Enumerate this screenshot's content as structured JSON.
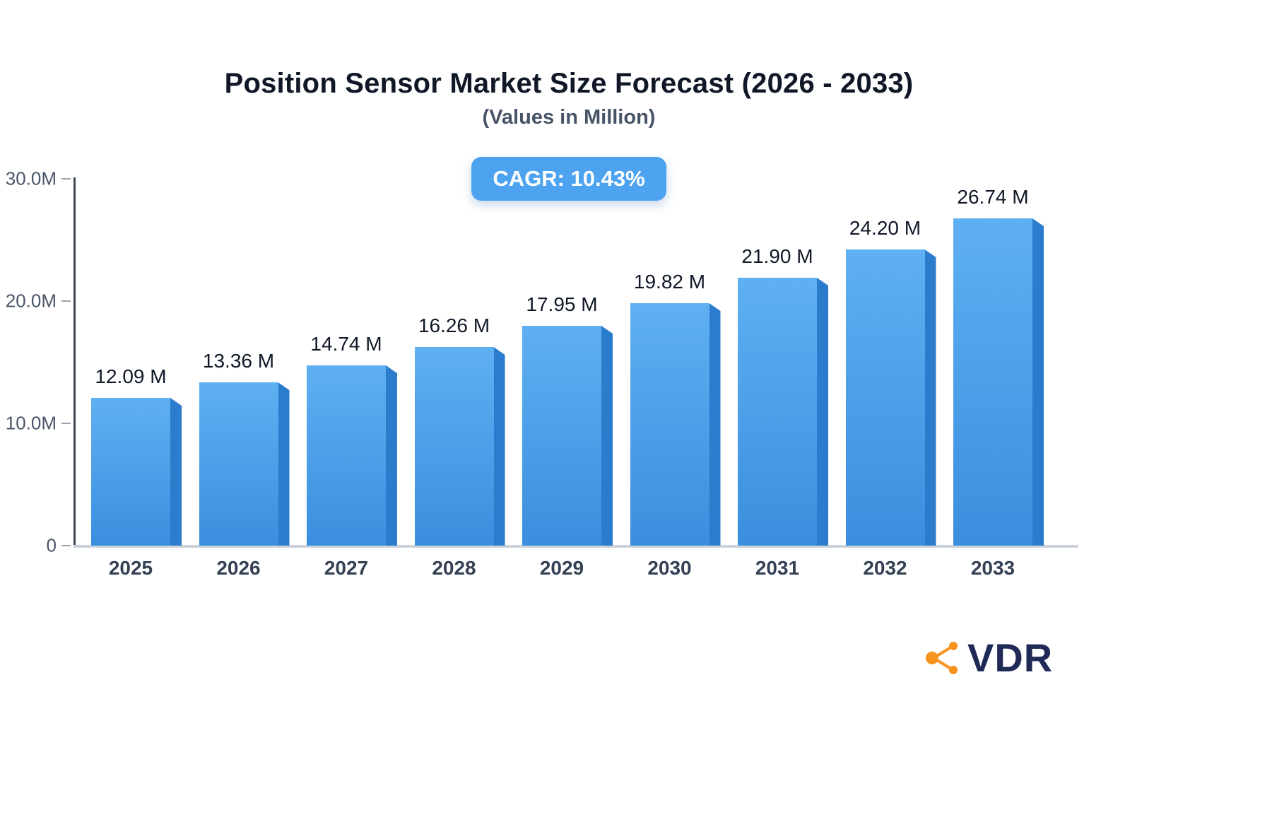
{
  "title": "Position Sensor Market Size Forecast (2026 - 2033)",
  "subtitle": "(Values in Million)",
  "cagr_badge": "CAGR: 10.43%",
  "logo_text": "VDR",
  "chart_data": {
    "type": "bar",
    "title": "Position Sensor Market Size Forecast (2026 - 2033)",
    "subtitle": "(Values in Million)",
    "annotation": "CAGR: 10.43%",
    "categories": [
      "2025",
      "2026",
      "2027",
      "2028",
      "2029",
      "2030",
      "2031",
      "2032",
      "2033"
    ],
    "values": [
      12.09,
      13.36,
      14.74,
      16.26,
      17.95,
      19.82,
      21.9,
      24.2,
      26.74
    ],
    "value_labels": [
      "12.09 M",
      "13.36 M",
      "14.74 M",
      "16.26 M",
      "17.95 M",
      "19.82 M",
      "21.90 M",
      "24.20 M",
      "26.74 M"
    ],
    "xlabel": "",
    "ylabel": "",
    "ylim": [
      0,
      30
    ],
    "yticks": [
      {
        "value": 30,
        "label": "30.0M"
      },
      {
        "value": 20,
        "label": "20.0M"
      },
      {
        "value": 10,
        "label": "10.0M"
      },
      {
        "value": 0,
        "label": "0"
      }
    ],
    "grid": false,
    "legend": false
  },
  "colors": {
    "badge_bg": "#4DA3EF",
    "badge_text": "#FFFFFF",
    "title": "#101828",
    "subtitle": "#475467",
    "bar_top": "#5FB0F2",
    "bar_bottom": "#3A8EDE",
    "bar_side": "#2B7CCC",
    "value_label": "#101828",
    "year_label": "#344054",
    "logo_orange": "#F7941E",
    "logo_navy": "#1F2A56"
  }
}
